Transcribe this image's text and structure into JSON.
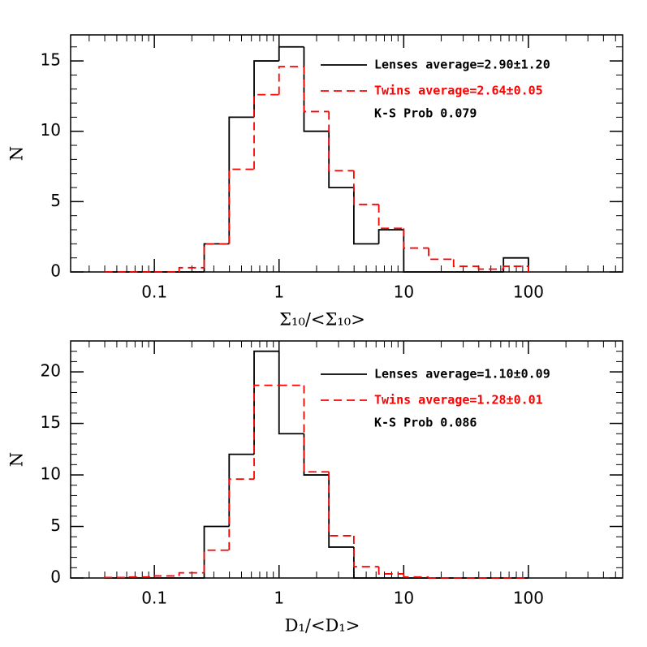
{
  "chart_data": [
    {
      "type": "histogram",
      "log_x": true,
      "xlabel": "Σ₁₀/<Σ₁₀>",
      "ylabel": "N",
      "bins": [
        0.0398,
        0.0631,
        0.1,
        0.158,
        0.251,
        0.398,
        0.631,
        1,
        1.585,
        2.512,
        3.981,
        6.31,
        10,
        15.85,
        25.12,
        39.81,
        63.1,
        100
      ],
      "series": [
        {
          "name": "Lenses average=2.90±1.20",
          "color": "#000000",
          "style": "solid",
          "values": [
            0,
            0,
            0,
            0,
            2,
            11,
            15,
            16,
            10,
            6,
            2,
            3,
            0,
            0,
            0,
            0,
            1
          ]
        },
        {
          "name": "Twins  average=2.64±0.05",
          "color": "#ff0000",
          "style": "dashed",
          "values": [
            0,
            0,
            0,
            0.3,
            2,
            7.3,
            12.6,
            14.6,
            11.4,
            7.2,
            4.8,
            3.1,
            1.7,
            0.9,
            0.4,
            0.2,
            0.4
          ]
        }
      ],
      "annotations": [
        "K-S Prob 0.079"
      ],
      "xlim": [
        0.0213,
        570
      ],
      "xticks": [
        0.1,
        1,
        10,
        100
      ],
      "ylim": [
        0,
        16.85
      ],
      "yticks": [
        0,
        5,
        10,
        15
      ]
    },
    {
      "type": "histogram",
      "log_x": true,
      "xlabel": "D₁/<D₁>",
      "ylabel": "N",
      "bins": [
        0.0398,
        0.0631,
        0.1,
        0.158,
        0.251,
        0.398,
        0.631,
        1,
        1.585,
        2.512,
        3.981,
        6.31,
        10,
        15.85,
        25.12,
        39.81,
        63.1,
        100
      ],
      "series": [
        {
          "name": "Lenses average=1.10±0.09",
          "color": "#000000",
          "style": "solid",
          "values": [
            0,
            0,
            0,
            0,
            5,
            12,
            22,
            14,
            10,
            3,
            0,
            0,
            0,
            0,
            0,
            0,
            0
          ]
        },
        {
          "name": "Twins  average=1.28±0.01",
          "color": "#ff0000",
          "style": "dashed",
          "values": [
            0.05,
            0.1,
            0.2,
            0.5,
            2.7,
            9.6,
            18.7,
            18.7,
            10.3,
            4.1,
            1.1,
            0.4,
            0.1,
            0,
            0,
            0,
            0
          ]
        }
      ],
      "annotations": [
        "K-S Prob 0.086"
      ],
      "xlim": [
        0.0213,
        570
      ],
      "xticks": [
        0.1,
        1,
        10,
        100
      ],
      "ylim": [
        0,
        23
      ],
      "yticks": [
        0,
        5,
        10,
        15,
        20
      ]
    }
  ]
}
